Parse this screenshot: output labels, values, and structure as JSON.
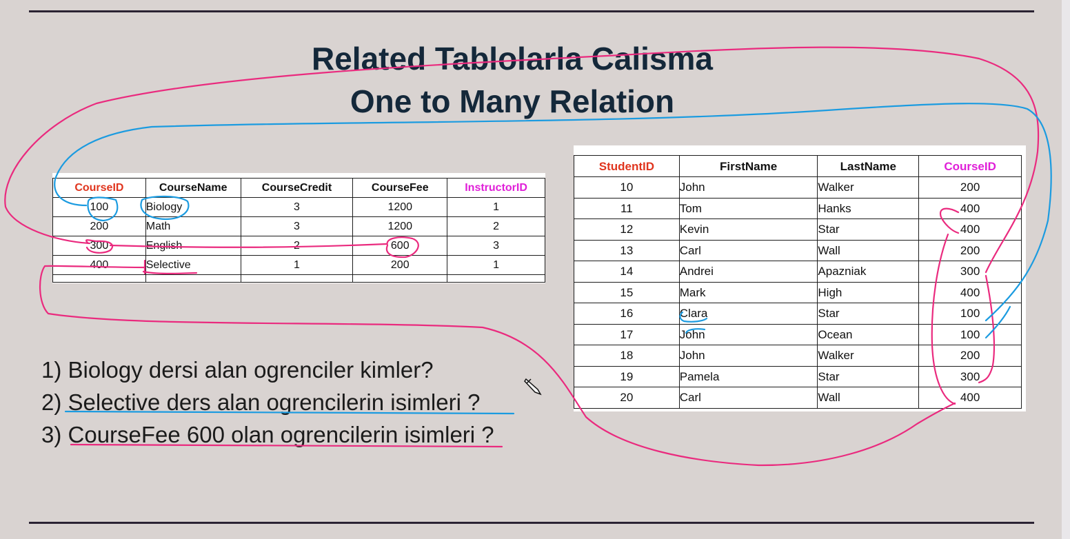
{
  "slide": {
    "title_line1": "Related Tablolarla Calisma",
    "title_line2": "One to Many Relation"
  },
  "courses_table": {
    "columns": [
      "CourseID",
      "CourseName",
      "CourseCredit",
      "CourseFee",
      "InstructorID"
    ],
    "rows": [
      [
        "100",
        "Biology",
        "3",
        "1200",
        "1"
      ],
      [
        "200",
        "Math",
        "3",
        "1200",
        "2"
      ],
      [
        "300",
        "English",
        "2",
        "600",
        "3"
      ],
      [
        "400",
        "Selective",
        "1",
        "200",
        "1"
      ]
    ]
  },
  "students_table": {
    "columns": [
      "StudentID",
      "FirstName",
      "LastName",
      "CourseID"
    ],
    "rows": [
      [
        "10",
        "John",
        "Walker",
        "200"
      ],
      [
        "11",
        "Tom",
        "Hanks",
        "400"
      ],
      [
        "12",
        "Kevin",
        "Star",
        "400"
      ],
      [
        "13",
        "Carl",
        "Wall",
        "200"
      ],
      [
        "14",
        "Andrei",
        "Apazniak",
        "300"
      ],
      [
        "15",
        "Mark",
        "High",
        "400"
      ],
      [
        "16",
        "Clara",
        "Star",
        "100"
      ],
      [
        "17",
        "John",
        "Ocean",
        "100"
      ],
      [
        "18",
        "John",
        "Walker",
        "200"
      ],
      [
        "19",
        "Pamela",
        "Star",
        "300"
      ],
      [
        "20",
        "Carl",
        "Wall",
        "400"
      ]
    ]
  },
  "questions": [
    "1) Biology dersi alan ogrenciler kimler?",
    "2) Selective ders alan ogrencilerin isimleri ?",
    "3) CourseFee 600 olan ogrencilerin isimleri ?"
  ],
  "colors": {
    "background": "#d9d3d1",
    "title": "#14283a",
    "header_red": "#e0351e",
    "header_magenta": "#e01fd8",
    "annotation_pink": "#ea2a7e",
    "annotation_blue": "#1b9be0"
  },
  "icons": {
    "cursor": "pencil-cursor-icon"
  }
}
